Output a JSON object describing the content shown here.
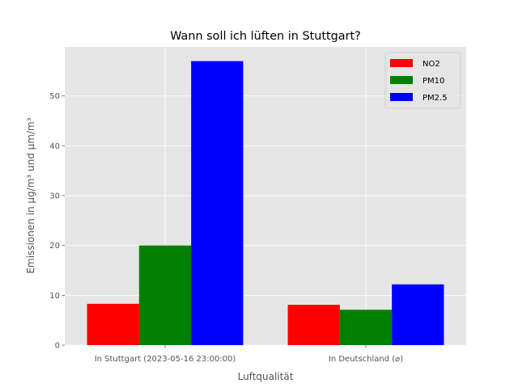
{
  "chart_data": {
    "type": "bar",
    "title": "Wann soll ich lüften in Stuttgart?",
    "xlabel": "Luftqualität",
    "ylabel": "Emissionen in µg/m³ und µm/m³",
    "categories": [
      "In Stuttgart (2023-05-16 23:00:00)",
      "In Deutschland (⌀)"
    ],
    "series": [
      {
        "name": "NO2",
        "color": "#ff0000",
        "values": [
          8.3,
          8.1
        ]
      },
      {
        "name": "PM10",
        "color": "#008000",
        "values": [
          20,
          7.1
        ]
      },
      {
        "name": "PM2.5",
        "color": "#0000ff",
        "values": [
          57,
          12.2
        ]
      }
    ],
    "ylim": [
      0,
      59.85
    ],
    "yticks": [
      0,
      10,
      20,
      30,
      40,
      50
    ],
    "grid": true,
    "legend_position": "top-right",
    "plot_background": "#e5e5e5"
  }
}
